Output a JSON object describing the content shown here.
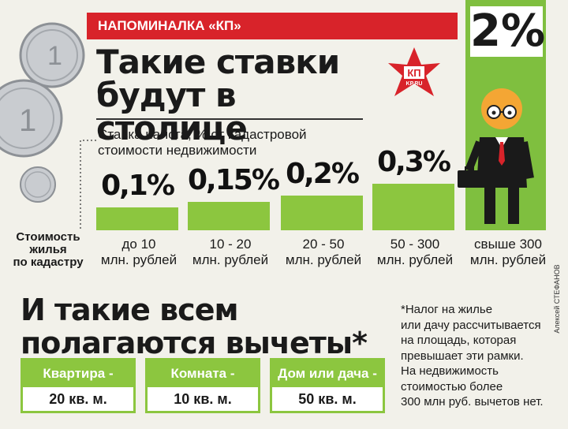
{
  "header": {
    "banner": "НАПОМИНАЛКА «КП»",
    "logo_text": "КП",
    "logo_sub": "KP.RU"
  },
  "headline": [
    "Такие ставки",
    "будут в столице"
  ],
  "subtitle": [
    "Ставка налога, % от кадастровой",
    "стоимости недвижимости"
  ],
  "row_label": [
    "Стоимость",
    "жилья",
    "по кадастру"
  ],
  "chart_data": {
    "type": "bar",
    "categories": [
      "до 10 млн. рублей",
      "10 - 20 млн. рублей",
      "20 - 50 млн. рублей",
      "50 - 300 млн. рублей",
      "свыше 300 млн. рублей"
    ],
    "value_labels": [
      "0,1%",
      "0,15%",
      "0,2%",
      "0,3%",
      "2%"
    ],
    "values": [
      0.1,
      0.15,
      0.2,
      0.3,
      2
    ]
  },
  "credit": "Алексей СТЕФАНОВ",
  "headline2": [
    "И такие всем",
    "полагаются вычеты*"
  ],
  "footnote": [
    "*Налог на жилье",
    "или дачу рассчитывается",
    "на площадь, которая",
    "превышает эти рамки.",
    "На недвижимость",
    "стоимостью более",
    "300 млн руб. вычетов нет."
  ],
  "deductions": [
    {
      "label": "Квартира -",
      "value": "20 кв. м."
    },
    {
      "label": "Комната -",
      "value": "10 кв. м."
    },
    {
      "label": "Дом или дача -",
      "value": "50 кв. м."
    }
  ],
  "colors": {
    "accent_green": "#8cc63f",
    "banner_red": "#d8232a"
  }
}
